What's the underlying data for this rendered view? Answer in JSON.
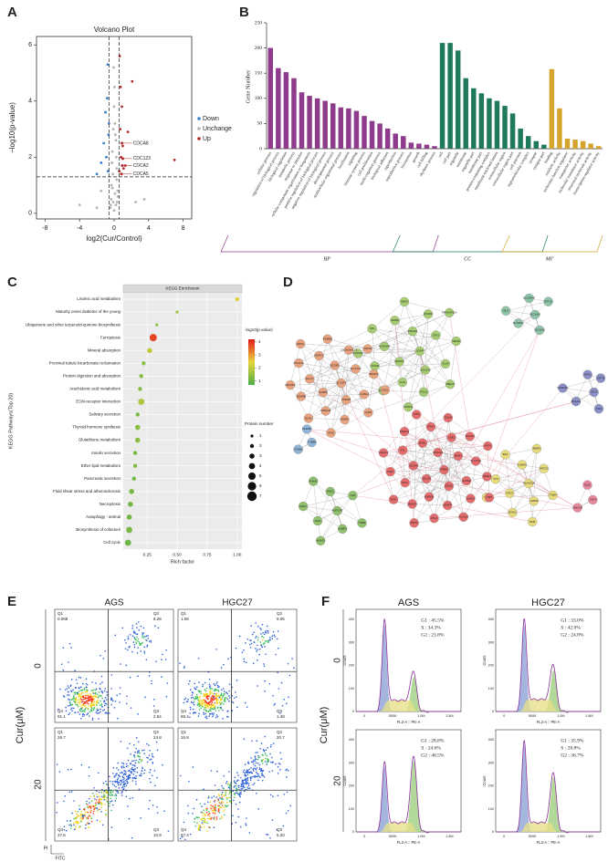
{
  "panel_labels": [
    "A",
    "B",
    "C",
    "D",
    "E",
    "F"
  ],
  "chart_data": [
    {
      "type": "scatter",
      "title": "Volcano Plot",
      "xlabel": "log2(Cur/Control)",
      "ylabel": "−log10(p-value)",
      "xlim": [
        -9,
        9
      ],
      "ylim": [
        -0.2,
        6.3
      ],
      "xticks": [
        -8,
        -4,
        0,
        4,
        8
      ],
      "yticks": [
        0,
        2,
        4,
        6
      ],
      "legend": "right",
      "thresholds": {
        "x": [
          -0.58,
          0.58
        ],
        "y": 1.3
      },
      "series": [
        {
          "name": "Down",
          "color": "#3a7fc8",
          "x": [
            -0.7,
            -0.9,
            -1.2,
            -0.6,
            -1.5,
            -0.8,
            -1.0,
            -0.65,
            -2.0,
            -0.75
          ],
          "values": [
            1.5,
            2.0,
            2.5,
            3.2,
            1.8,
            4.1,
            3.6,
            2.8,
            1.4,
            5.3
          ]
        },
        {
          "name": "Unchange",
          "color": "#b3b3b3",
          "x": [
            -0.4,
            -0.3,
            -0.2,
            -0.1,
            0,
            0.1,
            0.2,
            0.3,
            0.4,
            -0.35,
            -0.15,
            0.05,
            0.25,
            0.35,
            -0.25,
            0.15,
            -0.05,
            0.45,
            -0.45,
            0.3,
            -0.2,
            0.1,
            0,
            -0.1,
            0.2,
            -4,
            3.5,
            -2,
            2.5,
            -1.5
          ],
          "values": [
            0.3,
            1.0,
            2.2,
            3.0,
            3.8,
            3.2,
            2.6,
            1.6,
            0.8,
            0.5,
            1.4,
            4.5,
            2.0,
            0.4,
            1.8,
            2.8,
            5.2,
            0.6,
            0.2,
            1.2,
            0.9,
            0.7,
            0.1,
            0.4,
            0.3,
            0.3,
            0.5,
            0.2,
            0.4,
            0.8
          ]
        },
        {
          "name": "Up",
          "color": "#b22a2a",
          "x": [
            0.6,
            0.8,
            1.0,
            0.7,
            1.3,
            0.9,
            1.6,
            2.1,
            0.65,
            7.0,
            1.1,
            0.75
          ],
          "values": [
            1.5,
            2.0,
            2.4,
            3.0,
            1.7,
            3.8,
            2.9,
            4.7,
            5.6,
            1.9,
            1.6,
            4.5
          ]
        }
      ],
      "annotations": [
        {
          "text": "CDCA8",
          "x": 0.9,
          "y": 2.5
        },
        {
          "text": "CDC123",
          "x": 1.0,
          "y": 1.95
        },
        {
          "text": "CDCA2",
          "x": 0.95,
          "y": 1.7
        },
        {
          "text": "CDCA5",
          "x": 0.85,
          "y": 1.4
        }
      ]
    },
    {
      "type": "bar",
      "ylabel": "Gene Number",
      "ylim": [
        0,
        250
      ],
      "yticks": [
        0,
        50,
        100,
        150,
        200,
        250
      ],
      "groups": [
        {
          "name": "BP",
          "color": "#8e3b8c",
          "categories": [
            "cellular process",
            "regulation of biological process",
            "biological regulation",
            "metabolic process",
            "response to stimulus",
            "cellular component organization or biogenesis",
            "positive regulation of biological process",
            "negative regulation of biological process",
            "developmental process",
            "multicellular organismal process",
            "localization",
            "signaling",
            "immune system process",
            "cell proliferation",
            "multi-organism process",
            "biological adhesion",
            "reproduction",
            "reproductive process",
            "locomotion",
            "growth",
            "cell killing",
            "rhythmic process"
          ],
          "values": [
            200,
            160,
            152,
            140,
            112,
            105,
            100,
            95,
            90,
            82,
            80,
            75,
            65,
            55,
            50,
            40,
            30,
            25,
            12,
            10,
            8,
            5
          ]
        },
        {
          "name": "CC",
          "color": "#1e7a5a",
          "categories": [
            "cell",
            "cell part",
            "organelle",
            "membrane",
            "organelle part",
            "membrane part",
            "protein-containing complex",
            "membrane-enclosed lumen",
            "extracellular region",
            "extracellular region part",
            "cell junction",
            "supramolecular complex",
            "synapse",
            "synapse part"
          ],
          "values": [
            210,
            210,
            195,
            140,
            120,
            110,
            100,
            95,
            85,
            70,
            40,
            25,
            15,
            8
          ]
        },
        {
          "name": "MF",
          "color": "#d4a52a",
          "categories": [
            "binding",
            "catalytic activity",
            "molecular function regulator",
            "transporter activity",
            "molecular transducer activity",
            "structural molecule activity",
            "transcription regulator activity"
          ],
          "values": [
            158,
            80,
            20,
            18,
            15,
            10,
            5
          ]
        }
      ]
    },
    {
      "type": "dot",
      "title": "KEGG Enrichment",
      "xlabel": "Rich factor",
      "ylabel": "KEGG Pathways(Top 20)",
      "xlim": [
        0.05,
        1.04
      ],
      "xticks": [
        0.25,
        {
          "value": 0.5,
          "label": "0.50"
        },
        0.75,
        {
          "value": 1,
          "label": "1.00"
        }
      ],
      "categories": [
        "Linoleic acid metabolism",
        "Maturity onset diabetes of the young",
        "Ubiquinone and other terpenoid-quinone biosynthesis",
        "Ferroptosis",
        "Mineral absorption",
        "Proximal tubule bicarbonate reclamation",
        "Protein digestion and absorption",
        "Arachidonic acid metabolism",
        "ECM-receptor interaction",
        "Salivary secretion",
        "Thyroid hormone synthesis",
        "Glutathione metabolism",
        "Insulin secretion",
        "Ether lipid metabolism",
        "Pancreatic secretion",
        "Fluid shear stress and atherosclerosis",
        "Necroptosis",
        "Autophagy - animal",
        "Biosynthesis of cofactors",
        "Cell cycle"
      ],
      "values": [
        1.0,
        0.5,
        0.33,
        0.3,
        0.27,
        0.22,
        0.2,
        0.19,
        0.2,
        0.17,
        0.17,
        0.17,
        0.15,
        0.15,
        0.14,
        0.12,
        0.11,
        0.1,
        0.1,
        0.09
      ],
      "sizes": [
        2,
        1,
        1,
        5,
        3,
        2,
        2,
        2,
        4,
        2,
        3,
        3,
        2,
        2,
        2,
        3,
        3,
        3,
        4,
        4
      ],
      "pvalues": [
        2.3,
        1.6,
        1.5,
        3.8,
        2.0,
        1.4,
        1.3,
        1.3,
        1.8,
        1.2,
        1.4,
        1.4,
        1.2,
        1.2,
        1.1,
        1.2,
        1.1,
        1.1,
        1.2,
        1.1
      ],
      "color_title": "-log10(p.value)",
      "clim": [
        0.7,
        4.2
      ],
      "color_ticks": [
        1,
        2,
        3,
        4
      ],
      "size_title": "Protein number",
      "size_ticks": [
        1,
        2,
        3,
        4,
        5,
        6,
        7
      ]
    }
  ],
  "network": {
    "clusters": [
      {
        "color": "#a6cc72",
        "nodes": [
          "SCAP",
          "MAP1S",
          "ZNF318",
          "GOLGA3",
          "PLEKHA4",
          "STK3",
          "TLK2",
          "CENPL",
          "CLK4",
          "CKS1B",
          "KIF18A",
          "POLQ",
          "SIN",
          "NEMO",
          "KDM2A",
          "SMC4",
          "UBE2S",
          "FANCD2",
          "ARHGAP11A",
          "TOP2A"
        ]
      },
      {
        "color": "#e9a27e",
        "nodes": [
          "SLC6A7",
          "SAR1B",
          "ECGR1",
          "TRIM28",
          "HLA-A",
          "SLC12A2",
          "MRPL32",
          "NDRG1",
          "CLDN1A",
          "EDNRB",
          "CSGALNACT1",
          "WDR6",
          "POLR1A",
          "ZNF574",
          "ELP2",
          "PSMB8",
          "CHD3",
          "METAP2",
          "ANKS1",
          "IPO8",
          "RRS1",
          "OAZ1"
        ]
      },
      {
        "color": "#8fb6d6",
        "nodes": [
          "TUBB6",
          "CCNB1",
          "DNAJB1"
        ]
      },
      {
        "color": "#8ec4a8",
        "nodes": [
          "SLC16A3",
          "SLC28A3",
          "SLC25A47",
          "SLC25A1",
          "GLS",
          "CPT1A"
        ]
      },
      {
        "color": "#8c90c6",
        "nodes": [
          "IDO1",
          "BCL2L1",
          "NFS1",
          "PGD",
          "SIGMAR1",
          "OPTN"
        ]
      },
      {
        "color": "#e7db7c",
        "nodes": [
          "PLA2G2A",
          "GPC3",
          "LAMA3",
          "LAMA5",
          "VTN",
          "APOC3",
          "SORL1",
          "BAX",
          "ITGB4",
          "TNN",
          "MMP2",
          "PAM"
        ]
      },
      {
        "color": "#e56c6c",
        "nodes": [
          "RRM2",
          "CDCA8",
          "CDC123",
          "CDCA2",
          "CDCA5",
          "MKI67",
          "AURKB",
          "BUB1",
          "CCNE2",
          "PLK1",
          "CDK1",
          "CENPF",
          "FTL",
          "SLC7A11",
          "HMOX1",
          "GPX4",
          "ACSL4",
          "TFRC",
          "NCOA4",
          "FTH1",
          "NFE2L2",
          "KEAP1",
          "SAT1",
          "GCLM",
          "ALOX15",
          "CHAC1",
          "ATF4",
          "DDIT3",
          "TP53",
          "CBS"
        ]
      },
      {
        "color": "#e8879b",
        "nodes": [
          "KLF4",
          "HMGCR",
          "SQLE"
        ]
      },
      {
        "color": "#8fc06d",
        "nodes": [
          "NOTCH3",
          "JAG1",
          "HES1",
          "LAMP1",
          "DSC2",
          "LSR",
          "ANXA1",
          "ANXA2",
          "ITGB1"
        ]
      }
    ]
  },
  "flow": {
    "columns": [
      "AGS",
      "HGC27"
    ],
    "rows": [
      "0",
      "20"
    ],
    "row_title": "Cur(μM)",
    "x_label": "FITC",
    "y_label": "PI",
    "quadrants": [
      "Q1",
      "Q2",
      "Q3",
      "Q4"
    ],
    "values": [
      [
        [
          "0.088",
          "6.28",
          "2.54",
          "91.1"
        ],
        [
          "1.08",
          "9.05",
          "1.48",
          "88.4"
        ]
      ],
      [
        [
          "26.7",
          "24.8",
          "10.9",
          "37.6"
        ],
        [
          "16.8",
          "20.7",
          "5.20",
          "57.4"
        ]
      ]
    ]
  },
  "cycle": {
    "columns": [
      "AGS",
      "HGC27"
    ],
    "rows": [
      "0",
      "20"
    ],
    "row_title": "Cur(μM)",
    "x_label": "FL2-A :: PE-A",
    "y_label": "Count",
    "xticks": [
      "0",
      "500K",
      "1.0M",
      "1.5M"
    ],
    "yticks": [
      "0",
      "100",
      "200",
      "300",
      "400"
    ],
    "lines": [
      [
        [
          "G1 : 45.5%",
          "S : 34.3%",
          "G2 : 23.8%"
        ],
        [
          "G1 : 33.0%",
          "S : 42.0%",
          "G2 : 24.8%"
        ]
      ],
      [
        [
          "G1 : 28.8%",
          "S : 24.6%",
          "G2 : 46.5%"
        ],
        [
          "G1 : 35.9%",
          "S : 28.8%",
          "G2 : 36.7%"
        ]
      ]
    ]
  }
}
